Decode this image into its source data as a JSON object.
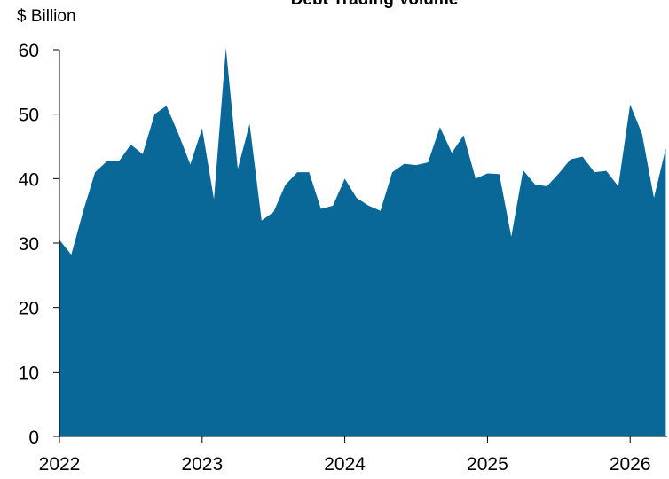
{
  "chart_data": {
    "type": "area",
    "title": "Debt Trading Volume",
    "y_label": "$ Billion",
    "x": [
      2022,
      2022.083,
      2022.167,
      2022.25,
      2022.333,
      2022.417,
      2022.5,
      2022.583,
      2022.667,
      2022.75,
      2022.833,
      2022.917,
      2023,
      2023.083,
      2023.167,
      2023.25,
      2023.333,
      2023.417,
      2023.5,
      2023.583,
      2023.667,
      2023.75,
      2023.833,
      2023.917,
      2024,
      2024.083,
      2024.167,
      2024.25,
      2024.333,
      2024.417,
      2024.5,
      2024.583,
      2024.667,
      2024.75,
      2024.833,
      2024.917,
      2025,
      2025.083,
      2025.167,
      2025.25,
      2025.333,
      2025.417,
      2025.5,
      2025.583,
      2025.667,
      2025.75,
      2025.833,
      2025.917,
      2026,
      2026.083,
      2026.167,
      2026.25
    ],
    "series": [
      {
        "color": "#0a6898",
        "values": [
          30.5,
          28.2,
          35,
          41,
          42.7,
          42.7,
          45.3,
          43.8,
          50,
          51.3,
          47,
          42.2,
          47.8,
          36.8,
          60.3,
          41.5,
          48.5,
          33.5,
          34.8,
          39,
          41,
          41,
          35.3,
          35.8,
          40,
          37,
          35.8,
          35,
          41,
          42.3,
          42.1,
          42.5,
          48,
          44,
          46.7,
          40,
          40.8,
          40.7,
          31,
          41.3,
          39.1,
          38.8,
          40.8,
          43,
          43.4,
          41,
          41.2,
          38.8,
          51.5,
          47,
          37,
          44.7
        ]
      }
    ],
    "xlim": [
      2022,
      2026.26
    ],
    "xticks": [
      2022,
      2023,
      2024,
      2025,
      2026
    ],
    "ylim": [
      0,
      60
    ],
    "yticks": [
      0,
      10,
      20,
      30,
      40,
      50,
      60
    ]
  }
}
